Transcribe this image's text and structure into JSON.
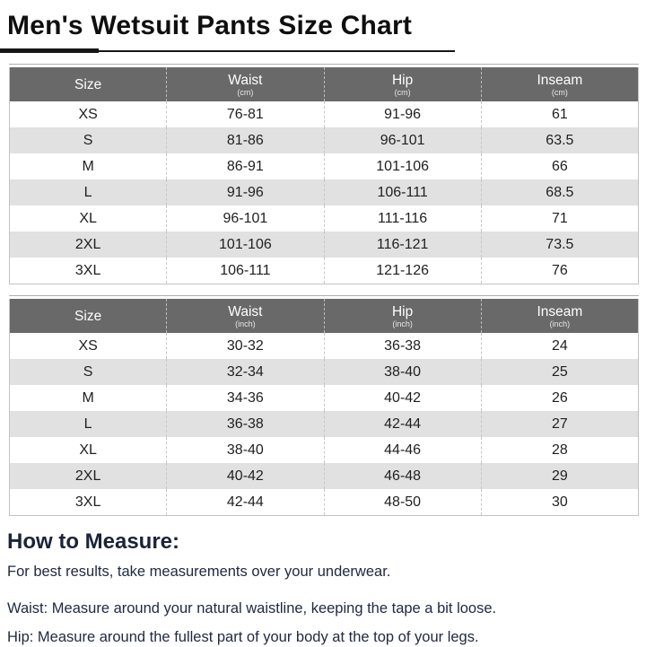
{
  "page": {
    "title": "Men's Wetsuit Pants Size Chart"
  },
  "colors": {
    "header_bg": "#696969",
    "row_alt_bg": "#e1e1e1",
    "title_text": "#0f0f0f",
    "howto_text": "#1b2338"
  },
  "tables": [
    {
      "name": "metric-cm",
      "columns": [
        {
          "label": "Size",
          "unit": ""
        },
        {
          "label": "Waist",
          "unit": "(cm)"
        },
        {
          "label": "Hip",
          "unit": "(cm)"
        },
        {
          "label": "Inseam",
          "unit": "(cm)"
        }
      ],
      "rows": [
        {
          "size": "XS",
          "waist": "76-81",
          "hip": "91-96",
          "inseam": "61"
        },
        {
          "size": "S",
          "waist": "81-86",
          "hip": "96-101",
          "inseam": "63.5"
        },
        {
          "size": "M",
          "waist": "86-91",
          "hip": "101-106",
          "inseam": "66"
        },
        {
          "size": "L",
          "waist": "91-96",
          "hip": "106-111",
          "inseam": "68.5"
        },
        {
          "size": "XL",
          "waist": "96-101",
          "hip": "111-116",
          "inseam": "71"
        },
        {
          "size": "2XL",
          "waist": "101-106",
          "hip": "116-121",
          "inseam": "73.5"
        },
        {
          "size": "3XL",
          "waist": "106-111",
          "hip": "121-126",
          "inseam": "76"
        }
      ]
    },
    {
      "name": "imperial-inch",
      "columns": [
        {
          "label": "Size",
          "unit": ""
        },
        {
          "label": "Waist",
          "unit": "(inch)"
        },
        {
          "label": "Hip",
          "unit": "(inch)"
        },
        {
          "label": "Inseam",
          "unit": "(inch)"
        }
      ],
      "rows": [
        {
          "size": "XS",
          "waist": "30-32",
          "hip": "36-38",
          "inseam": "24"
        },
        {
          "size": "S",
          "waist": "32-34",
          "hip": "38-40",
          "inseam": "25"
        },
        {
          "size": "M",
          "waist": "34-36",
          "hip": "40-42",
          "inseam": "26"
        },
        {
          "size": "L",
          "waist": "36-38",
          "hip": "42-44",
          "inseam": "27"
        },
        {
          "size": "XL",
          "waist": "38-40",
          "hip": "44-46",
          "inseam": "28"
        },
        {
          "size": "2XL",
          "waist": "40-42",
          "hip": "46-48",
          "inseam": "29"
        },
        {
          "size": "3XL",
          "waist": "42-44",
          "hip": "48-50",
          "inseam": "30"
        }
      ]
    }
  ],
  "how_to_measure": {
    "heading": "How to Measure:",
    "intro": "For best results, take measurements over your underwear.",
    "tips": [
      "Waist: Measure around your natural waistline, keeping the tape a bit loose.",
      "Hip: Measure around the fullest part of your body at the top of your legs."
    ]
  }
}
